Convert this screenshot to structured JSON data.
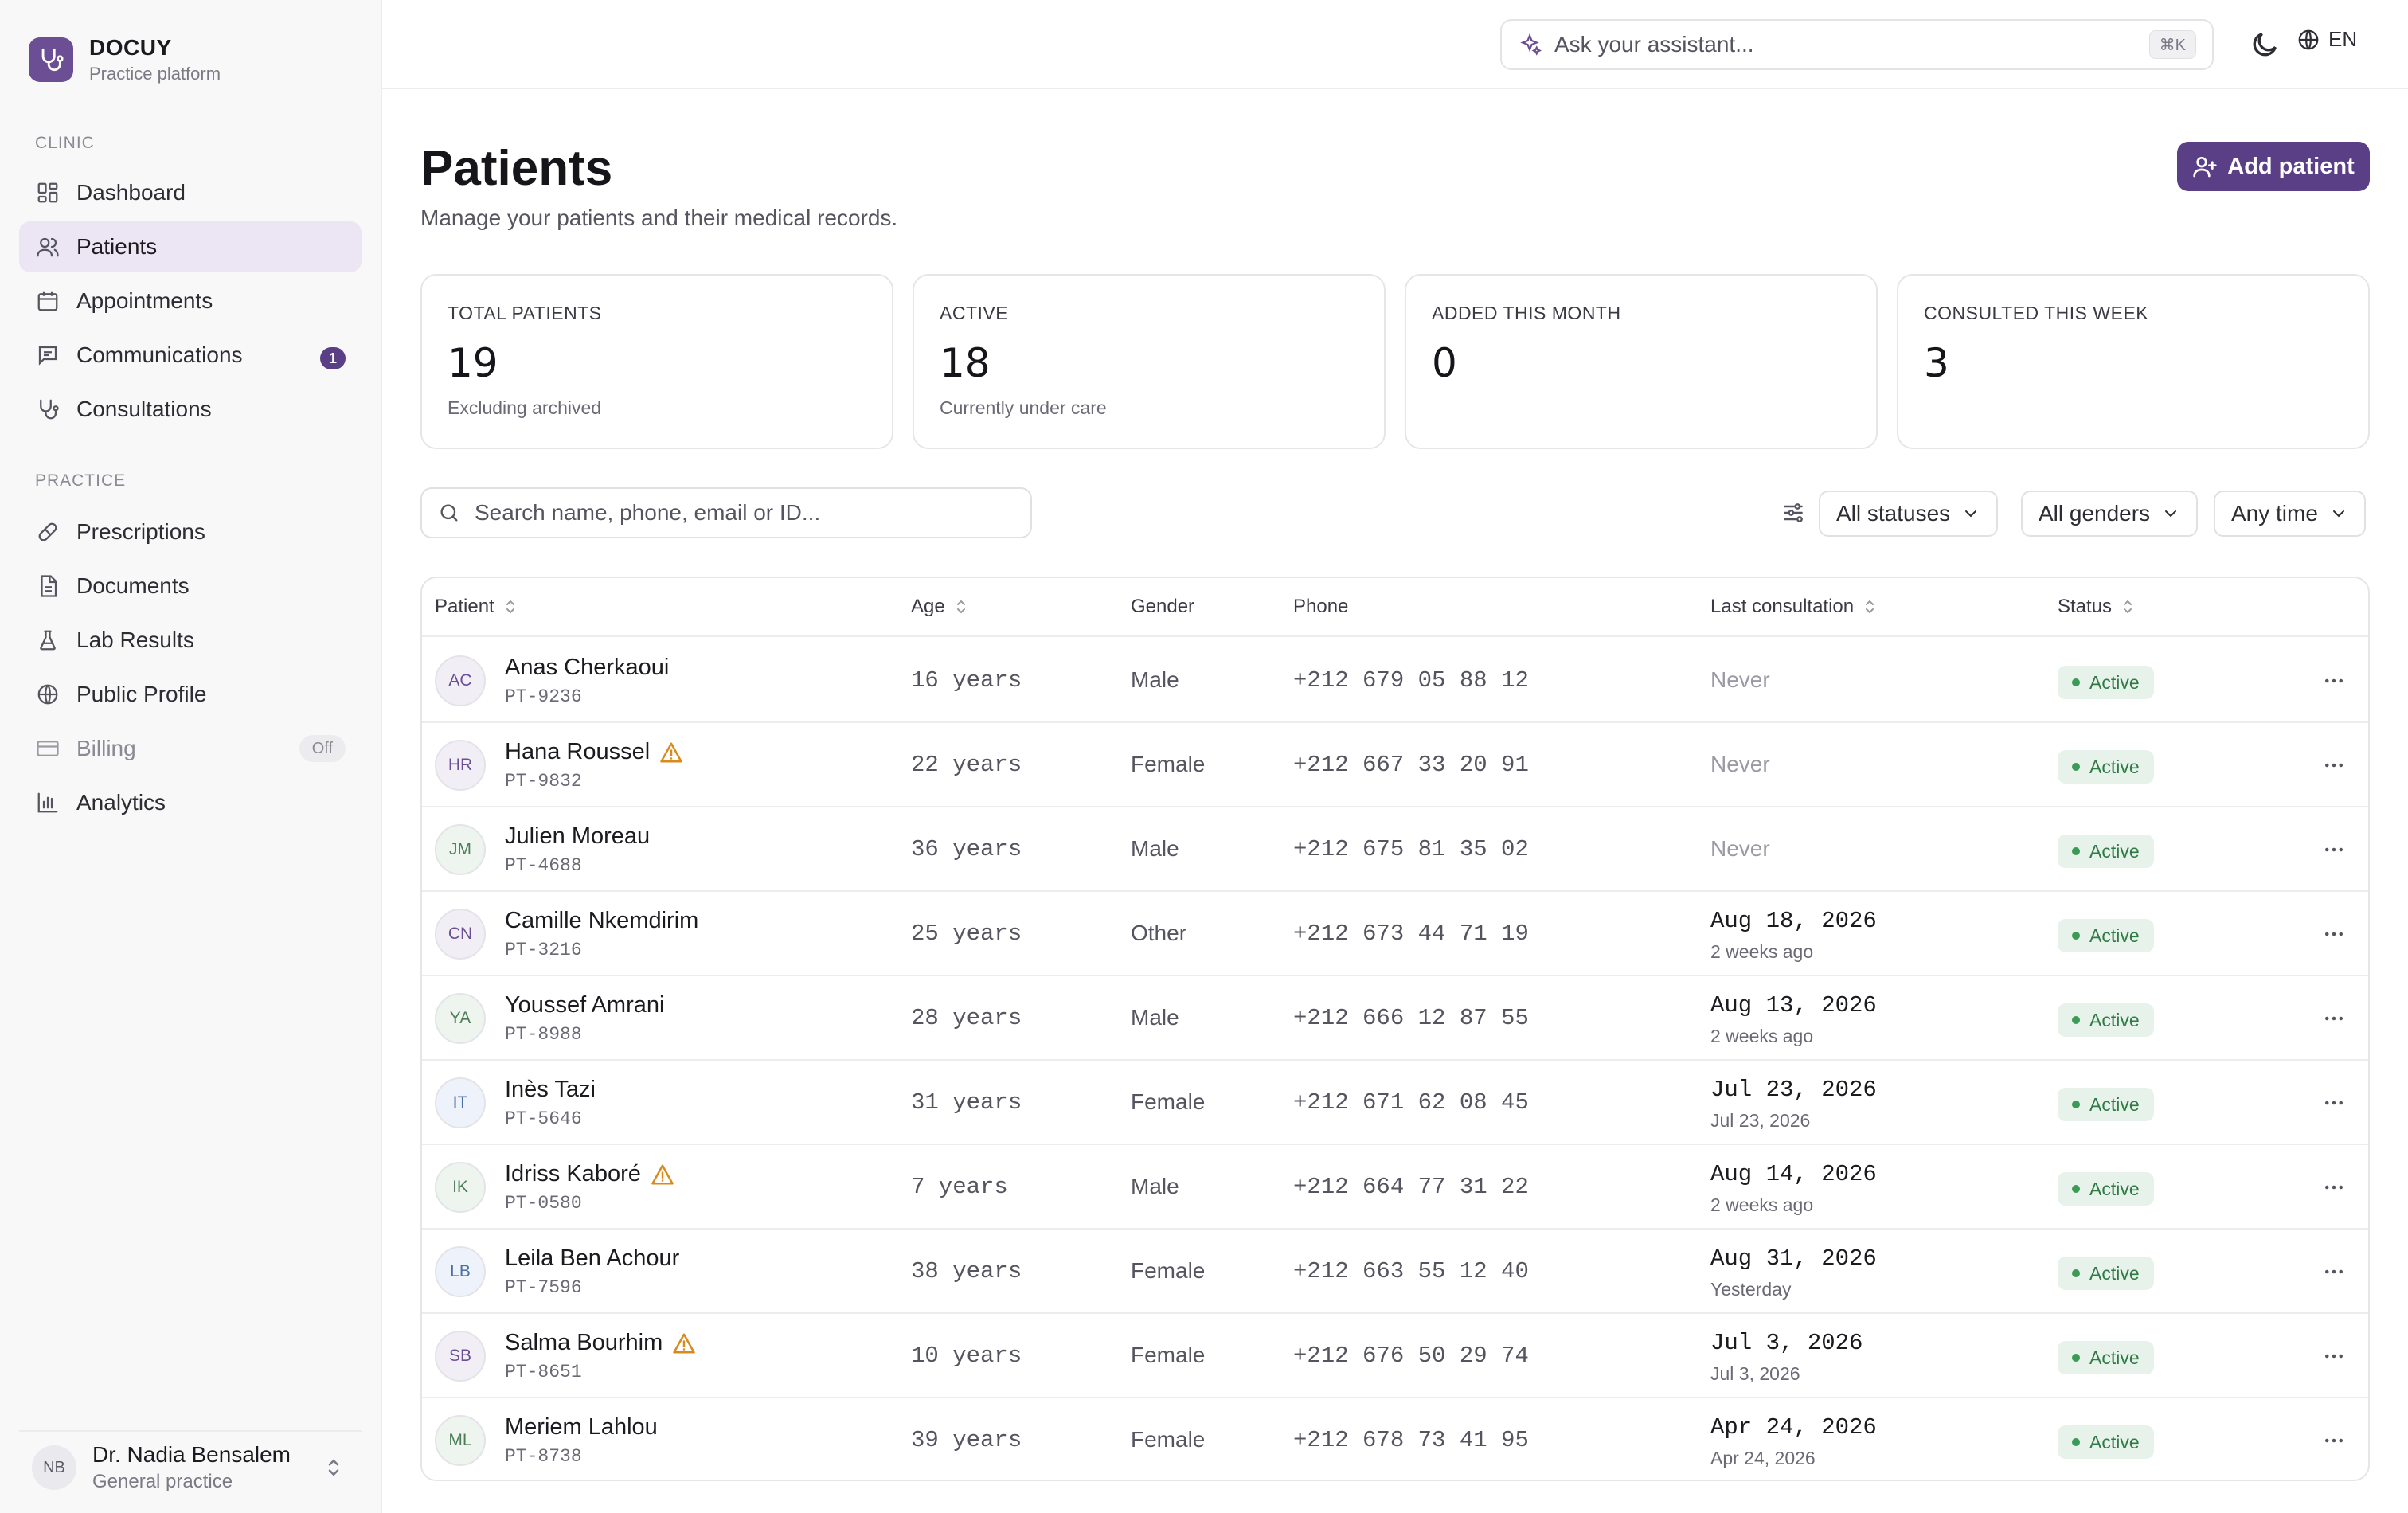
{
  "brand": {
    "name": "DOCUY",
    "subtitle": "Practice platform"
  },
  "sidebar": {
    "sections": [
      {
        "label": "CLINIC"
      },
      {
        "label": "PRACTICE"
      }
    ],
    "items": [
      {
        "label": "Dashboard",
        "icon": "dashboard-icon"
      },
      {
        "label": "Patients",
        "icon": "users-icon",
        "active": true
      },
      {
        "label": "Appointments",
        "icon": "calendar-icon"
      },
      {
        "label": "Communications",
        "icon": "message-icon",
        "badge": "1"
      },
      {
        "label": "Consultations",
        "icon": "stethoscope-icon"
      },
      {
        "label": "Prescriptions",
        "icon": "pill-icon"
      },
      {
        "label": "Documents",
        "icon": "document-icon"
      },
      {
        "label": "Lab Results",
        "icon": "flask-icon"
      },
      {
        "label": "Public Profile",
        "icon": "globe-icon"
      },
      {
        "label": "Billing",
        "icon": "credit-card-icon",
        "tag": "Off"
      },
      {
        "label": "Analytics",
        "icon": "bar-chart-icon"
      }
    ],
    "user": {
      "initials": "NB",
      "name": "Dr. Nadia Bensalem",
      "role": "General practice"
    }
  },
  "topbar": {
    "assistant_placeholder": "Ask your assistant...",
    "shortcut": "⌘K",
    "language": "EN"
  },
  "page": {
    "title": "Patients",
    "subtitle": "Manage your patients and their medical records.",
    "add_button": "Add patient"
  },
  "stats": [
    {
      "label": "TOTAL PATIENTS",
      "value": "19",
      "note": "Excluding archived"
    },
    {
      "label": "ACTIVE",
      "value": "18",
      "note": "Currently under care"
    },
    {
      "label": "ADDED THIS MONTH",
      "value": "0",
      "note": ""
    },
    {
      "label": "CONSULTED THIS WEEK",
      "value": "3",
      "note": ""
    }
  ],
  "filters": {
    "search_placeholder": "Search name, phone, email or ID...",
    "status": "All statuses",
    "gender": "All genders",
    "time": "Any time"
  },
  "table": {
    "columns": [
      "Patient",
      "Age",
      "Gender",
      "Phone",
      "Last consultation",
      "Status"
    ],
    "rows": [
      {
        "initials": "AC",
        "name": "Anas Cherkaoui",
        "id": "PT-9236",
        "age": "16 years",
        "gender": "Male",
        "phone": "+212 679 05 88 12",
        "last": "Never",
        "last_rel": "",
        "status": "Active",
        "warning": false,
        "avatar_color": "#f1eef6",
        "avatar_text": "#6b4e93"
      },
      {
        "initials": "HR",
        "name": "Hana Roussel",
        "id": "PT-9832",
        "age": "22 years",
        "gender": "Female",
        "phone": "+212 667 33 20 91",
        "last": "Never",
        "last_rel": "",
        "status": "Active",
        "warning": true,
        "avatar_color": "#f1eef6",
        "avatar_text": "#6b4e93"
      },
      {
        "initials": "JM",
        "name": "Julien Moreau",
        "id": "PT-4688",
        "age": "36 years",
        "gender": "Male",
        "phone": "+212 675 81 35 02",
        "last": "Never",
        "last_rel": "",
        "status": "Active",
        "warning": false,
        "avatar_color": "#edf5ee",
        "avatar_text": "#4c7d58"
      },
      {
        "initials": "CN",
        "name": "Camille Nkemdirim",
        "id": "PT-3216",
        "age": "25 years",
        "gender": "Other",
        "phone": "+212 673 44 71 19",
        "last": "Aug 18, 2026",
        "last_rel": "2 weeks ago",
        "status": "Active",
        "warning": false,
        "avatar_color": "#f1eef6",
        "avatar_text": "#6b4e93"
      },
      {
        "initials": "YA",
        "name": "Youssef Amrani",
        "id": "PT-8988",
        "age": "28 years",
        "gender": "Male",
        "phone": "+212 666 12 87 55",
        "last": "Aug 13, 2026",
        "last_rel": "2 weeks ago",
        "status": "Active",
        "warning": false,
        "avatar_color": "#edf5ee",
        "avatar_text": "#4c7d58"
      },
      {
        "initials": "IT",
        "name": "Inès Tazi",
        "id": "PT-5646",
        "age": "31 years",
        "gender": "Female",
        "phone": "+212 671 62 08 45",
        "last": "Jul 23, 2026",
        "last_rel": "Jul 23, 2026",
        "status": "Active",
        "warning": false,
        "avatar_color": "#eef3fb",
        "avatar_text": "#4a6fa5"
      },
      {
        "initials": "IK",
        "name": "Idriss Kaboré",
        "id": "PT-0580",
        "age": "7 years",
        "gender": "Male",
        "phone": "+212 664 77 31 22",
        "last": "Aug 14, 2026",
        "last_rel": "2 weeks ago",
        "status": "Active",
        "warning": true,
        "avatar_color": "#edf5ee",
        "avatar_text": "#4c7d58"
      },
      {
        "initials": "LB",
        "name": "Leila Ben Achour",
        "id": "PT-7596",
        "age": "38 years",
        "gender": "Female",
        "phone": "+212 663 55 12 40",
        "last": "Aug 31, 2026",
        "last_rel": "Yesterday",
        "status": "Active",
        "warning": false,
        "avatar_color": "#eef3fb",
        "avatar_text": "#4a6fa5"
      },
      {
        "initials": "SB",
        "name": "Salma Bourhim",
        "id": "PT-8651",
        "age": "10 years",
        "gender": "Female",
        "phone": "+212 676 50 29 74",
        "last": "Jul 3, 2026",
        "last_rel": "Jul 3, 2026",
        "status": "Active",
        "warning": true,
        "avatar_color": "#f1eef6",
        "avatar_text": "#6b4e93"
      },
      {
        "initials": "ML",
        "name": "Meriem Lahlou",
        "id": "PT-8738",
        "age": "39 years",
        "gender": "Female",
        "phone": "+212 678 73 41 95",
        "last": "Apr 24, 2026",
        "last_rel": "Apr 24, 2026",
        "status": "Active",
        "warning": false,
        "avatar_color": "#edf5ee",
        "avatar_text": "#4c7d58"
      }
    ]
  },
  "colors": {
    "accent": "#5b3f86",
    "active_bg": "#e7f3ea",
    "active_text": "#2f7a45",
    "warning": "#d98a1c"
  }
}
